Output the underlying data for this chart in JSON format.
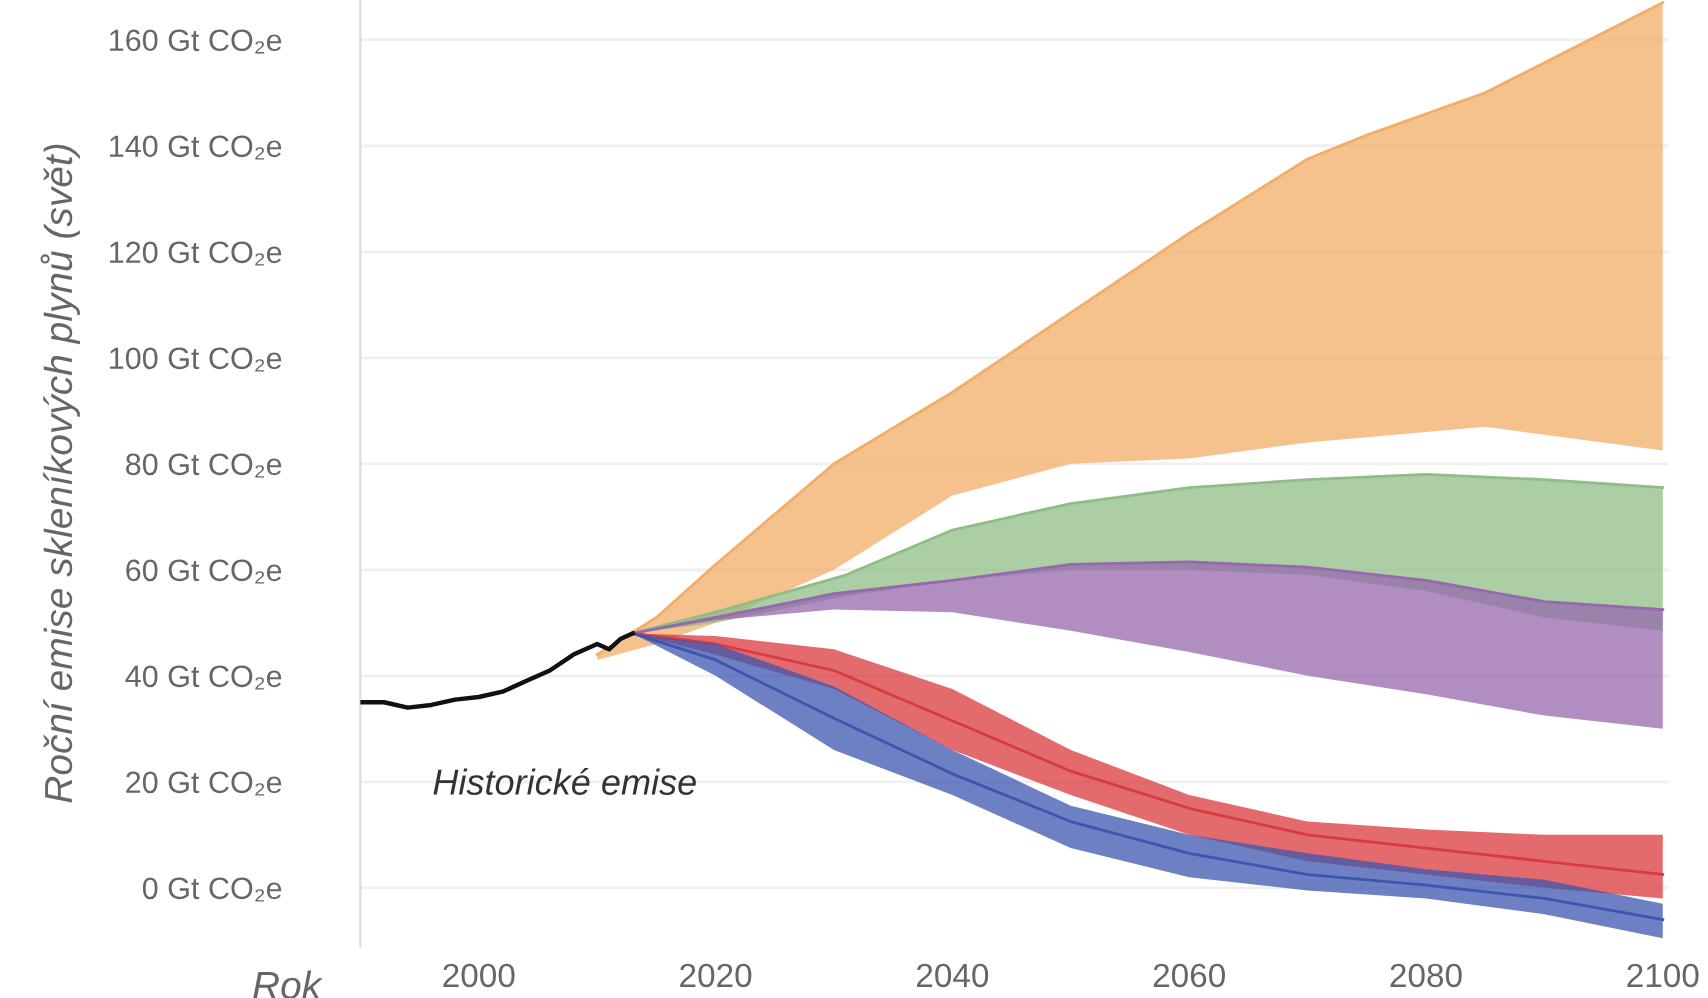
{
  "chart_data": {
    "type": "line",
    "xlabel": "Rok",
    "ylabel": "Roční emise skleníkových plynů (svět)",
    "annotations": [
      "Historické emise"
    ],
    "xlim": [
      1990,
      2100.5
    ],
    "xticks": [
      2000,
      2020,
      2040,
      2060,
      2080,
      2100
    ],
    "ylim": [
      -11,
      167.5
    ],
    "yticks": [
      {
        "value": 0,
        "label": "0 Gt CO₂e"
      },
      {
        "value": 20,
        "label": "20 Gt CO₂e"
      },
      {
        "value": 40,
        "label": "40 Gt CO₂e"
      },
      {
        "value": 60,
        "label": "60 Gt CO₂e"
      },
      {
        "value": 80,
        "label": "80 Gt CO₂e"
      },
      {
        "value": 100,
        "label": "100 Gt CO₂e"
      },
      {
        "value": 120,
        "label": "120 Gt CO₂e"
      },
      {
        "value": 140,
        "label": "140 Gt CO₂e"
      },
      {
        "value": 160,
        "label": "160 Gt CO₂e"
      }
    ],
    "grid": "y",
    "legend": false,
    "series": [
      {
        "color": "#f2ad67",
        "x": [
          2010,
          2015,
          2020,
          2030,
          2040,
          2050,
          2060,
          2070,
          2075,
          2085,
          2100
        ],
        "lower": [
          43,
          46,
          50,
          60,
          74,
          80,
          81,
          84,
          85,
          87,
          82.5
        ],
        "upper": [
          44,
          51,
          61,
          80,
          93.5,
          108.5,
          123.5,
          137.5,
          142,
          150,
          167
        ],
        "values": [
          44,
          51,
          61,
          80,
          93.5,
          108.5,
          123.5,
          137.5,
          142,
          150,
          167
        ]
      },
      {
        "color": "#8fbd85",
        "x": [
          2013,
          2020,
          2031,
          2040,
          2050,
          2060,
          2070,
          2080,
          2090,
          2100
        ],
        "lower": [
          48,
          50,
          55,
          58,
          60,
          60,
          59,
          56,
          51,
          48.5
        ],
        "upper": [
          48,
          52,
          59,
          67.5,
          72.5,
          75.5,
          77,
          78,
          77,
          75.5
        ],
        "values": [
          48,
          52,
          59,
          67.5,
          72.5,
          75.5,
          77,
          78,
          77,
          75.5
        ]
      },
      {
        "color": "#9668ad",
        "x": [
          2013,
          2020,
          2030,
          2040,
          2050,
          2060,
          2070,
          2080,
          2090,
          2100
        ],
        "lower": [
          48,
          50.5,
          52.5,
          52,
          48.5,
          44.5,
          40,
          36.5,
          32.5,
          30
        ],
        "upper": [
          48,
          51,
          55.5,
          58,
          61,
          61.5,
          60.5,
          58,
          54,
          52.5
        ],
        "values": [
          48,
          51,
          55.5,
          58,
          61,
          61.5,
          60.5,
          58,
          54,
          52.5
        ]
      },
      {
        "color": "#d93a3d",
        "x": [
          2013,
          2020,
          2030,
          2040,
          2050,
          2060,
          2070,
          2080,
          2090,
          2100
        ],
        "values": [
          48,
          46,
          41,
          31.5,
          22,
          15,
          10,
          7.5,
          5,
          2.5
        ],
        "lower": [
          48,
          44,
          37.5,
          26,
          17.5,
          10,
          5,
          2.5,
          0,
          -2
        ],
        "upper": [
          48,
          47.5,
          45,
          37.5,
          26,
          17.5,
          12.5,
          11,
          10,
          10
        ]
      },
      {
        "color": "#3d55b0",
        "x": [
          2013,
          2020,
          2030,
          2040,
          2050,
          2060,
          2070,
          2080,
          2090,
          2100
        ],
        "values": [
          48,
          43,
          32,
          21.5,
          12.5,
          6.5,
          2.5,
          0.5,
          -2,
          -6
        ],
        "lower": [
          48,
          40,
          26,
          17.5,
          7.5,
          2,
          -0.5,
          -2,
          -5,
          -9.5
        ],
        "upper": [
          48,
          46,
          38,
          26,
          15.5,
          10,
          6.5,
          3.5,
          1.5,
          -3
        ]
      },
      {
        "color": "#111111",
        "x": [
          1990,
          1992,
          1994,
          1996,
          1998,
          2000,
          2002,
          2004,
          2006,
          2008,
          2010,
          2011,
          2012,
          2013
        ],
        "values": [
          35,
          35,
          34,
          34.5,
          35.5,
          36,
          37,
          39,
          41,
          44,
          46,
          45,
          47,
          48
        ]
      }
    ]
  }
}
